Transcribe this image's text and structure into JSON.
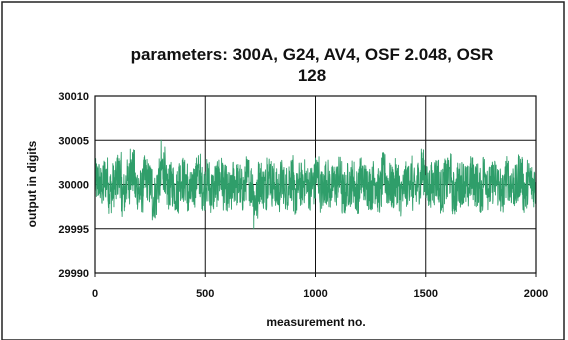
{
  "chart_data": {
    "type": "line",
    "title_line1": "parameters: 300A, G24, AV4, OSF 2.048, OSR",
    "title_line2": "128",
    "xlabel": "measurement no.",
    "ylabel": "output in digits",
    "xlim": [
      0,
      2000
    ],
    "ylim": [
      29990,
      30010
    ],
    "x_ticks": [
      0,
      500,
      1000,
      1500,
      2000
    ],
    "y_ticks": [
      29990,
      29995,
      30000,
      30005,
      30010
    ],
    "x_tick_labels": [
      "0",
      "500",
      "1000",
      "1500",
      "2000"
    ],
    "y_tick_labels": [
      "29990",
      "29995",
      "30000",
      "30005",
      "30010"
    ],
    "grid": true,
    "legend": "none",
    "series": [
      {
        "color": "#2f9e6a",
        "n_points": 2000,
        "mean": 30000,
        "typical_range": [
          29997,
          30003
        ],
        "extreme_range": [
          29995,
          30005
        ],
        "values_sampled_every_20": [
          30001,
          29999,
          30002,
          29998,
          30000,
          30003,
          29997,
          30001,
          30004,
          29999,
          29998,
          30002,
          30000,
          29996,
          30001,
          30005,
          29999,
          30000,
          29998,
          30002,
          30001,
          29997,
          30000,
          30003,
          29999,
          30001,
          29998,
          30000,
          30002,
          29999,
          29997,
          30001,
          30000,
          29998,
          30002,
          30000,
          29995,
          30001,
          29999,
          30003,
          30000,
          29998,
          30001,
          29999,
          30002,
          29997,
          30000,
          30001,
          29999,
          30000,
          30003,
          29998,
          30001,
          29999,
          30000,
          30002,
          29997,
          30000,
          30001,
          29998,
          30002,
          30000,
          29999,
          30001,
          29998,
          30003,
          30000,
          29999,
          30001,
          29997,
          30000,
          30002,
          29998,
          30001,
          30004,
          29999,
          30000,
          30002,
          29998,
          30001,
          30003,
          29997,
          30000,
          30001,
          29999,
          30002,
          30000,
          29998,
          30003,
          29999,
          30001,
          30000,
          29997,
          30002,
          30000,
          29999,
          30003,
          29998,
          30001,
          30000
        ]
      }
    ]
  }
}
